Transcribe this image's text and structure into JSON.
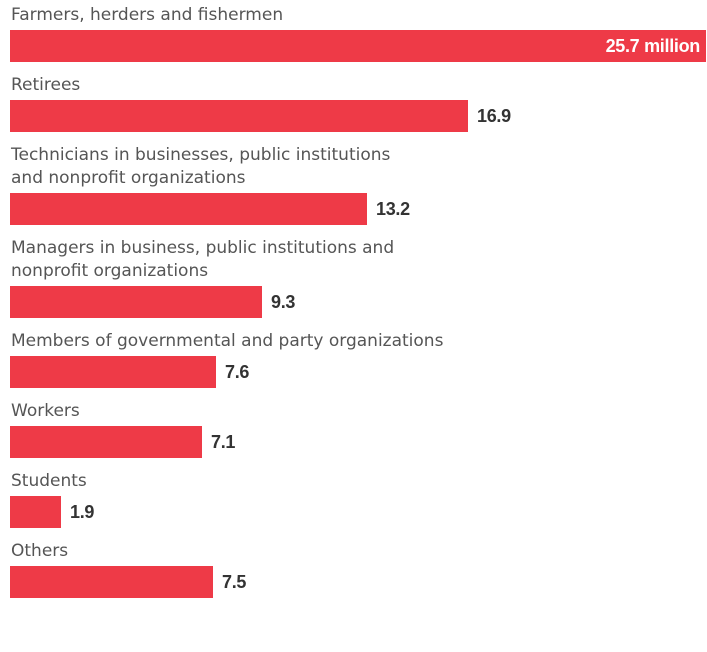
{
  "chart_data": {
    "type": "bar",
    "orientation": "horizontal",
    "categories": [
      "Farmers, herders and fishermen",
      "Retirees",
      "Technicians in businesses, public institutions\nand nonprofit organizations",
      "Managers in business, public institutions and\nnonprofit organizations",
      "Members of governmental and party organizations",
      "Workers",
      "Students",
      "Others"
    ],
    "values": [
      25.7,
      16.9,
      13.2,
      9.3,
      7.6,
      7.1,
      1.9,
      7.5
    ],
    "value_labels": [
      "25.7 million",
      "16.9",
      "13.2",
      "9.3",
      "7.6",
      "7.1",
      "1.9",
      "7.5"
    ],
    "unit": "million",
    "xlim": [
      0,
      25.7
    ],
    "grid": false,
    "legend": "none"
  },
  "colors": {
    "bar": "#EE3A47",
    "category_text": "#555555",
    "value_text": "#333333",
    "value_text_inside": "#ffffff"
  }
}
